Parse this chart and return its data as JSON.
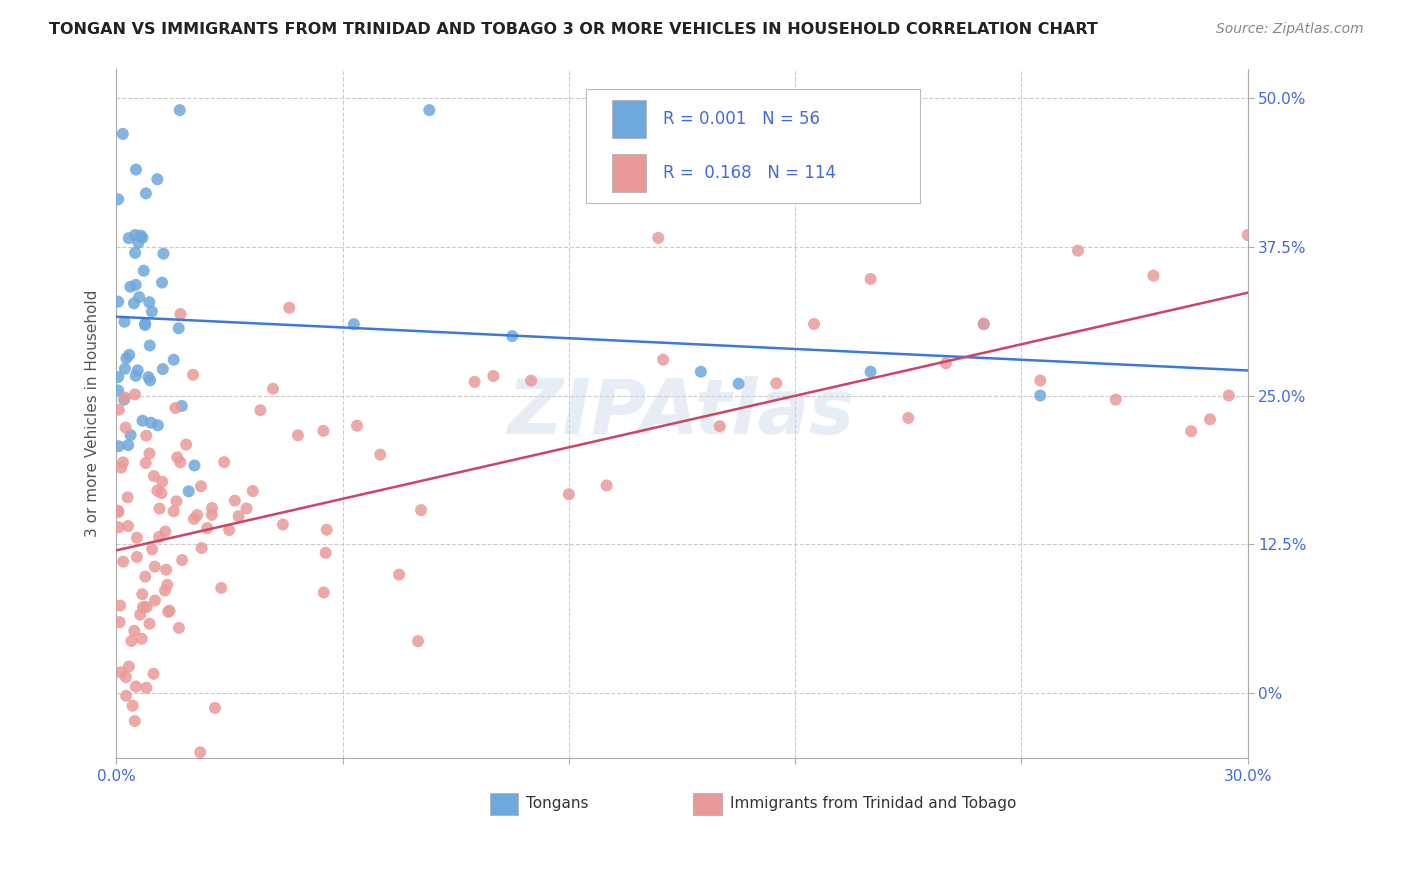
{
  "title": "TONGAN VS IMMIGRANTS FROM TRINIDAD AND TOBAGO 3 OR MORE VEHICLES IN HOUSEHOLD CORRELATION CHART",
  "source": "Source: ZipAtlas.com",
  "ylabel": "3 or more Vehicles in Household",
  "xmin": 0.0,
  "xmax": 0.3,
  "ymin": -0.055,
  "ymax": 0.525,
  "ytick_vals": [
    0.0,
    0.125,
    0.25,
    0.375,
    0.5
  ],
  "ytick_labels": [
    "0%",
    "12.5%",
    "25.0%",
    "37.5%",
    "50.0%"
  ],
  "xtick_vals": [
    0.0,
    0.06,
    0.12,
    0.18,
    0.24,
    0.3
  ],
  "legend_label1": "Tongans",
  "legend_label2": "Immigrants from Trinidad and Tobago",
  "R1": 0.001,
  "N1": 56,
  "R2": 0.168,
  "N2": 114,
  "color1": "#6fa8dc",
  "color2": "#ea9999",
  "line_color1": "#3c78d8",
  "line_color2": "#cc4466",
  "line_dash_color": "#aaaacc",
  "background_color": "#ffffff",
  "watermark": "ZIPAtlas",
  "axis_color": "#4169e1",
  "grid_color": "#cccccc",
  "title_color": "#222222",
  "source_color": "#888888",
  "ylabel_color": "#555555"
}
